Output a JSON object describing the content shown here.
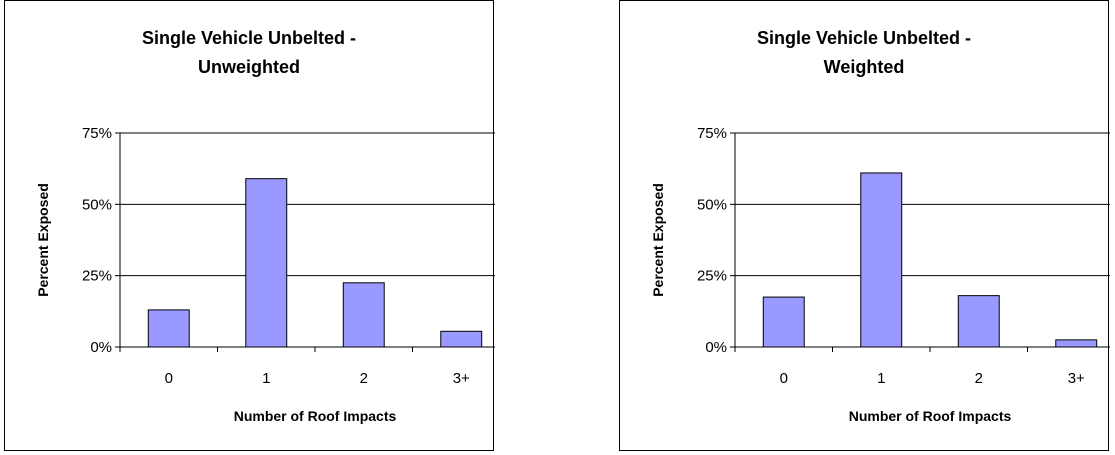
{
  "colors": {
    "bar_fill": "#9999ff",
    "bar_stroke": "#000000",
    "grid": "#000000"
  },
  "chart_data": [
    {
      "type": "bar",
      "title_lines": [
        "Single Vehicle Unbelted -",
        "Unweighted"
      ],
      "xlabel": "Number of Roof Impacts",
      "ylabel": "Percent Exposed",
      "categories": [
        "0",
        "1",
        "2",
        "3+"
      ],
      "values": [
        13,
        59,
        22.5,
        5.5
      ],
      "ylim": [
        0,
        75
      ],
      "yticks": [
        0,
        25,
        50,
        75
      ],
      "ytick_labels": [
        "0%",
        "25%",
        "50%",
        "75%"
      ],
      "grid": true,
      "legend": "none"
    },
    {
      "type": "bar",
      "title_lines": [
        "Single Vehicle Unbelted -",
        "Weighted"
      ],
      "xlabel": "Number of Roof Impacts",
      "ylabel": "Percent Exposed",
      "categories": [
        "0",
        "1",
        "2",
        "3+"
      ],
      "values": [
        17.5,
        61,
        18,
        2.5
      ],
      "ylim": [
        0,
        75
      ],
      "yticks": [
        0,
        25,
        50,
        75
      ],
      "ytick_labels": [
        "0%",
        "25%",
        "50%",
        "75%"
      ],
      "grid": true,
      "legend": "none"
    }
  ]
}
